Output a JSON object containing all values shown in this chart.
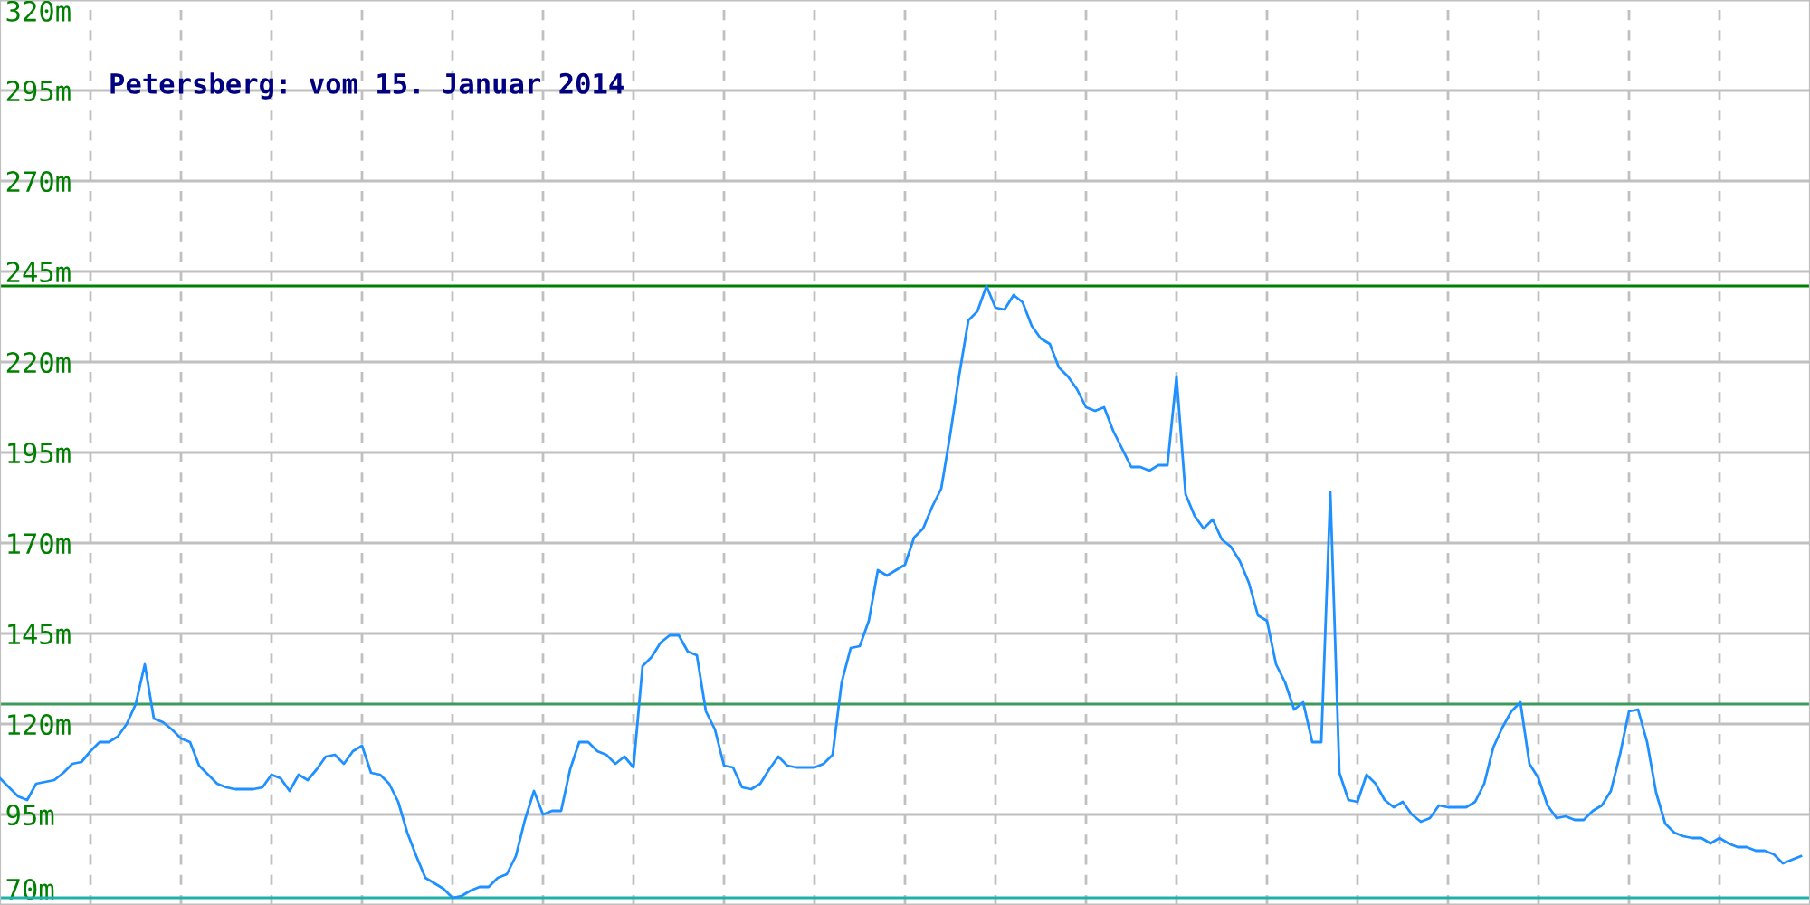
{
  "chart_data": {
    "type": "line",
    "title": "Petersberg: vom 15. Januar 2014",
    "categories": [
      null,
      null,
      null,
      null,
      null,
      null,
      null,
      null,
      null,
      null,
      null,
      null,
      null,
      null,
      null,
      null,
      null,
      null,
      null,
      null,
      null,
      null,
      null,
      null,
      null,
      null,
      null,
      null,
      null,
      null,
      null,
      null,
      null,
      null,
      null,
      null,
      null,
      null,
      null,
      null,
      null,
      null,
      null,
      null,
      null,
      null,
      null,
      null,
      null,
      null,
      null,
      null,
      null,
      null,
      null,
      null,
      null,
      null,
      null,
      null,
      null,
      null,
      null,
      null,
      null,
      null,
      null,
      null,
      null,
      null,
      null,
      null,
      null,
      null,
      null,
      null,
      null,
      null,
      null,
      null,
      null,
      null,
      null,
      null,
      null,
      null,
      null,
      null,
      null,
      null,
      null,
      null,
      null,
      null,
      null,
      null,
      null,
      null,
      null,
      null,
      null,
      null,
      null,
      null,
      null,
      null,
      null,
      null,
      null,
      null,
      null,
      null,
      null,
      null,
      null,
      null,
      null,
      null,
      null,
      null,
      null,
      null,
      null,
      null,
      null,
      null,
      null,
      null,
      null,
      null,
      null,
      null,
      null,
      null,
      null,
      null,
      null,
      null,
      null,
      null,
      null,
      null,
      null,
      null,
      null,
      null,
      null,
      null,
      null,
      null,
      null,
      null,
      null,
      null,
      null,
      null,
      null,
      null,
      null,
      null,
      null,
      null,
      null,
      null,
      null,
      null,
      null,
      null,
      null,
      null,
      null,
      null,
      null,
      null,
      null,
      null,
      null,
      null,
      null,
      null,
      null,
      null,
      null,
      null,
      null,
      null,
      null,
      null,
      null,
      null,
      null,
      null,
      null,
      null,
      null,
      null,
      null,
      null,
      null,
      null
    ],
    "series": [
      {
        "color": "#1e90ff",
        "values": [
          105,
          102.5,
          100,
          99,
          103.5,
          104,
          104.5,
          106.5,
          109,
          109.5,
          112.5,
          115,
          115,
          116.5,
          120,
          125.5,
          136.5,
          121.5,
          120.5,
          118.5,
          116,
          115,
          108.5,
          106,
          103.5,
          102.5,
          102,
          102,
          102,
          102.5,
          106,
          105,
          101.5,
          106,
          104.5,
          107.5,
          111,
          111.5,
          109,
          112.5,
          114,
          106.5,
          106,
          103.5,
          98.5,
          90,
          83.5,
          77.5,
          76,
          74.5,
          72,
          72.5,
          74,
          75,
          75,
          77.5,
          78.5,
          83.5,
          93.5,
          101.5,
          95,
          96,
          96,
          107.5,
          115,
          115,
          112.5,
          111.5,
          109,
          111,
          108,
          136,
          138.5,
          142.5,
          144.5,
          144.5,
          140,
          139,
          123.5,
          118.5,
          108.5,
          108,
          102.5,
          102,
          103.5,
          107.5,
          111,
          108.5,
          108,
          108,
          108,
          109,
          111.5,
          131.5,
          141,
          141.5,
          148.5,
          162.5,
          161,
          162.5,
          164,
          171.5,
          174,
          180,
          185,
          200,
          216.5,
          231.5,
          234,
          241,
          235,
          234.5,
          238.5,
          236.5,
          230,
          226.5,
          225,
          218.5,
          216,
          212.5,
          207.5,
          206.5,
          207.5,
          201,
          196,
          191,
          191,
          190,
          191.5,
          191.5,
          216,
          183.5,
          177.5,
          174,
          176.5,
          171,
          169,
          165,
          159,
          150,
          148.5,
          136.5,
          131.5,
          124,
          126,
          115,
          115,
          184,
          106.5,
          99,
          98.5,
          106,
          103.5,
          99,
          97,
          98.5,
          95,
          93,
          94,
          97.5,
          97,
          97,
          97,
          98.5,
          103.5,
          113.5,
          119,
          123.5,
          126,
          109,
          105,
          97.5,
          94,
          94.5,
          93.5,
          93.5,
          96,
          97.5,
          101.5,
          111.5,
          123.5,
          124,
          115,
          101,
          92.5,
          90,
          89,
          88.5,
          88.5,
          87,
          88.5,
          87,
          86,
          86,
          85,
          85,
          84,
          81.5,
          82.5,
          83.5
        ]
      }
    ],
    "ylim": [
      70,
      320
    ],
    "yticks": [
      {
        "value": 70,
        "label": "70m"
      },
      {
        "value": 95,
        "label": "95m"
      },
      {
        "value": 120,
        "label": "120m"
      },
      {
        "value": 145,
        "label": "145m"
      },
      {
        "value": 170,
        "label": "170m"
      },
      {
        "value": 195,
        "label": "195m"
      },
      {
        "value": 220,
        "label": "220m"
      },
      {
        "value": 245,
        "label": "245m"
      },
      {
        "value": 270,
        "label": "270m"
      },
      {
        "value": 295,
        "label": "295m"
      },
      {
        "value": 320,
        "label": "320m"
      }
    ],
    "ref_lines": [
      {
        "axis": "y",
        "value": 241,
        "color": "#008000"
      },
      {
        "axis": "y",
        "value": 125.5,
        "color": "#3c9a5a"
      },
      {
        "axis": "y",
        "value": 72,
        "color": "#20b2aa"
      }
    ],
    "grid": true,
    "marker": "none",
    "line_style": "solid"
  }
}
